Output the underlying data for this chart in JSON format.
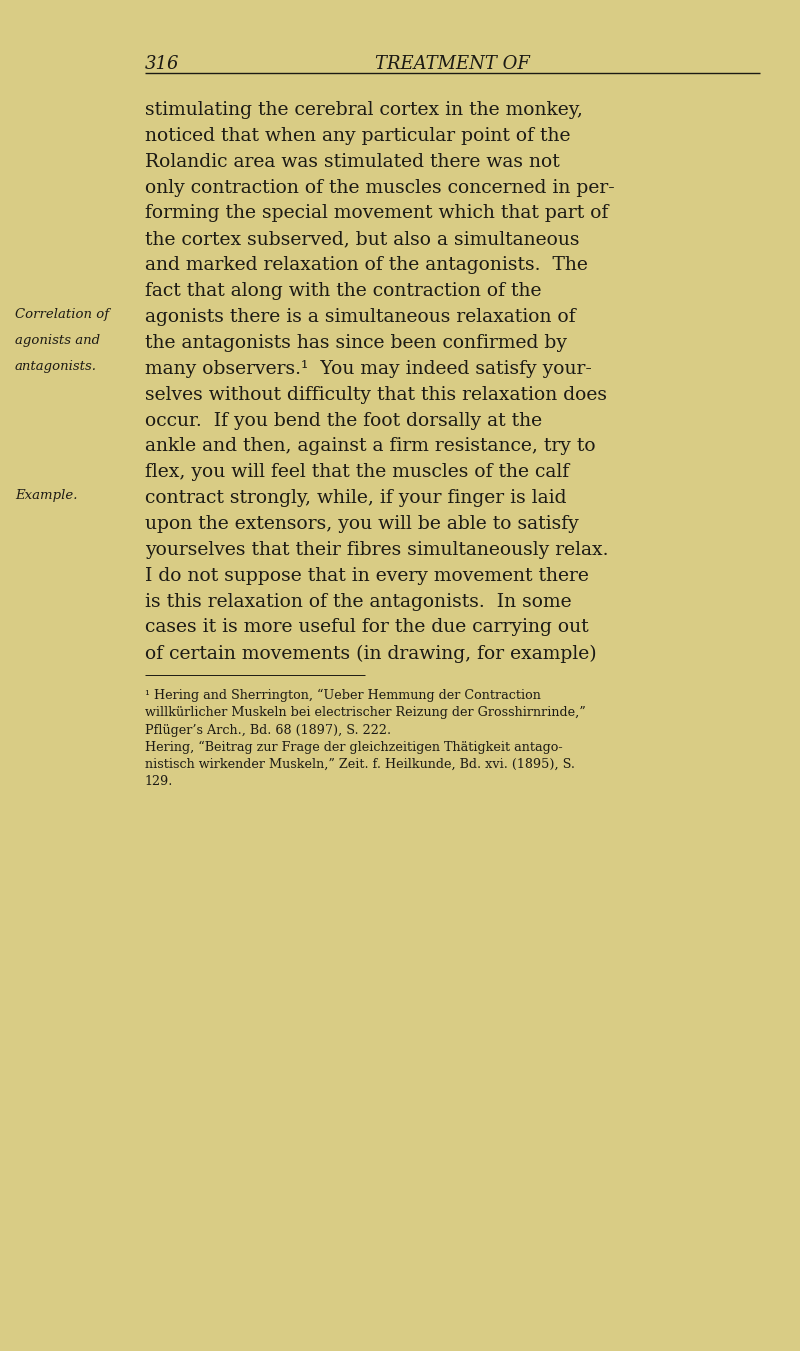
{
  "bg_color": "#d9cc85",
  "text_color": "#1c1a14",
  "page_number": "316",
  "header_title": "TREATMENT OF",
  "page_width": 8.0,
  "page_height": 13.51,
  "dpi": 100,
  "header_font_size": 13,
  "main_font_size": 13.5,
  "sidenote_font_size": 9.5,
  "footnote_font_size": 9.2,
  "body_lines": [
    "stimulating the cerebral cortex in the monkey,",
    "noticed that when any particular point of the",
    "Rolandic area was stimulated there was not",
    "only contraction of the muscles concerned in per-",
    "forming the special movement which that part of",
    "the cortex subserved, but also a simultaneous",
    "and marked relaxation of the antagonists.  The",
    "fact that along with the contraction of the",
    "agonists there is a simultaneous relaxation of",
    "the antagonists has since been confirmed by",
    "many observers.¹  You may indeed satisfy your-",
    "selves without difficulty that this relaxation does",
    "occur.  If you bend the foot dorsally at the",
    "ankle and then, against a firm resistance, try to",
    "flex, you will feel that the muscles of the calf",
    "contract strongly, while, if your finger is laid",
    "upon the extensors, you will be able to satisfy",
    "yourselves that their fibres simultaneously relax.",
    "I do not suppose that in every movement there",
    "is this relaxation of the antagonists.  In some",
    "cases it is more useful for the due carrying out",
    "of certain movements (in drawing, for example)"
  ],
  "sidenote_lines": [
    {
      "text": "Correlation of",
      "line_idx": 8
    },
    {
      "text": "agonists and",
      "line_idx": 9
    },
    {
      "text": "antagonists.",
      "line_idx": 10
    }
  ],
  "sidenote2_lines": [
    {
      "text": "Example.",
      "line_idx": 15
    }
  ],
  "footnote_lines": [
    "¹ Hering and Sherrington, “Ueber Hemmung der Contraction",
    "willkürlicher Muskeln bei electrischer Reizung der Grosshirnrinde,”",
    "Pflüger’s Arch., Bd. 68 (1897), S. 222.",
    "Hering, “Beitrag zur Frage der gleichzeitigen Thätigkeit antago-",
    "nistisch wirkender Muskeln,” Zeit. f. Heilkunde, Bd. xvi. (1895), S.",
    "129."
  ]
}
